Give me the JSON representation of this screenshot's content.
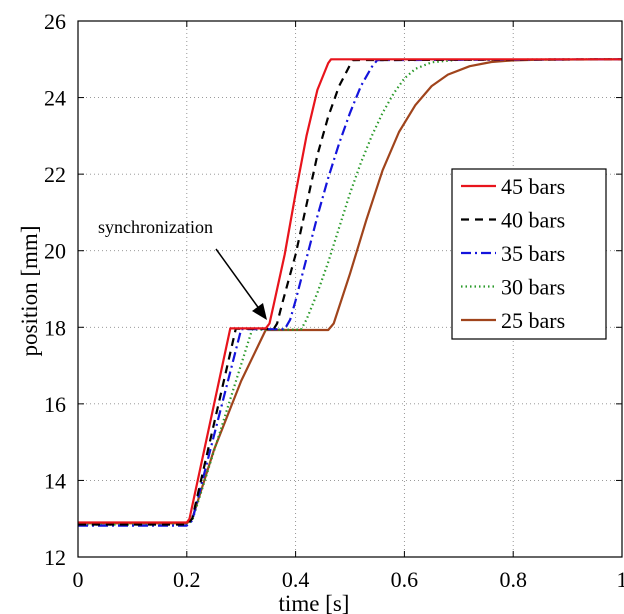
{
  "chart_data": {
    "type": "line",
    "title": "",
    "xlabel": "time [s]",
    "ylabel": "position [mm]",
    "xlim": [
      0,
      1
    ],
    "ylim": [
      12,
      26
    ],
    "xticks": [
      0,
      0.2,
      0.4,
      0.6,
      0.8,
      1
    ],
    "xtick_labels": [
      "0",
      "0.2",
      "0.4",
      "0.6",
      "0.8",
      "1"
    ],
    "yticks": [
      12,
      14,
      16,
      18,
      20,
      22,
      24,
      26
    ],
    "ytick_labels": [
      "12",
      "14",
      "16",
      "18",
      "20",
      "22",
      "24",
      "26"
    ],
    "grid": true,
    "grid_style": "dotted",
    "legend_position": "right",
    "annotation": {
      "text": "synchronization",
      "points_to": [
        0.35,
        18.05
      ]
    },
    "series": [
      {
        "name": "45 bars",
        "color": "#e8141c",
        "dash": "solid",
        "x": [
          0,
          0.2,
          0.205,
          0.28,
          0.285,
          0.345,
          0.352,
          0.36,
          0.38,
          0.4,
          0.42,
          0.44,
          0.46,
          0.465,
          1.0
        ],
        "y": [
          12.9,
          12.9,
          13.0,
          17.97,
          17.97,
          17.97,
          18.1,
          18.6,
          19.9,
          21.5,
          23.0,
          24.2,
          24.9,
          25.0,
          25.0
        ]
      },
      {
        "name": "40 bars",
        "color": "#000000",
        "dash": "8,6",
        "x": [
          0,
          0.2,
          0.21,
          0.29,
          0.295,
          0.36,
          0.366,
          0.375,
          0.4,
          0.42,
          0.44,
          0.46,
          0.48,
          0.5,
          0.505,
          1.0
        ],
        "y": [
          12.85,
          12.85,
          13.0,
          17.96,
          17.96,
          17.96,
          18.1,
          18.6,
          19.9,
          21.2,
          22.5,
          23.5,
          24.3,
          24.85,
          24.98,
          25.0
        ]
      },
      {
        "name": "35 bars",
        "color": "#1414dc",
        "dash": "10,4,2,4",
        "x": [
          0,
          0.2,
          0.21,
          0.3,
          0.305,
          0.38,
          0.39,
          0.4,
          0.42,
          0.44,
          0.46,
          0.48,
          0.5,
          0.52,
          0.54,
          0.55,
          1.0
        ],
        "y": [
          12.82,
          12.82,
          12.95,
          17.95,
          17.95,
          17.95,
          18.2,
          18.7,
          19.8,
          20.9,
          21.9,
          22.8,
          23.6,
          24.3,
          24.8,
          24.98,
          25.0
        ]
      },
      {
        "name": "30 bars",
        "color": "#2a9a2a",
        "dash": "1.5,3",
        "x": [
          0,
          0.2,
          0.21,
          0.32,
          0.325,
          0.41,
          0.42,
          0.44,
          0.46,
          0.48,
          0.5,
          0.52,
          0.54,
          0.56,
          0.58,
          0.6,
          0.62,
          0.65,
          0.7,
          1.0
        ],
        "y": [
          12.85,
          12.85,
          12.95,
          17.94,
          17.94,
          17.94,
          18.2,
          18.9,
          19.7,
          20.6,
          21.5,
          22.3,
          23.0,
          23.6,
          24.1,
          24.5,
          24.75,
          24.92,
          24.99,
          25.0
        ]
      },
      {
        "name": "25 bars",
        "color": "#a0441c",
        "dash": "solid",
        "x": [
          0,
          0.2,
          0.21,
          0.25,
          0.3,
          0.345,
          0.35,
          0.46,
          0.47,
          0.5,
          0.53,
          0.56,
          0.59,
          0.62,
          0.65,
          0.68,
          0.72,
          0.76,
          0.8,
          0.85,
          1.0
        ],
        "y": [
          12.88,
          12.88,
          13.0,
          14.8,
          16.6,
          17.93,
          17.93,
          17.93,
          18.1,
          19.4,
          20.8,
          22.1,
          23.1,
          23.8,
          24.3,
          24.6,
          24.82,
          24.93,
          24.97,
          24.99,
          25.0
        ]
      }
    ]
  }
}
